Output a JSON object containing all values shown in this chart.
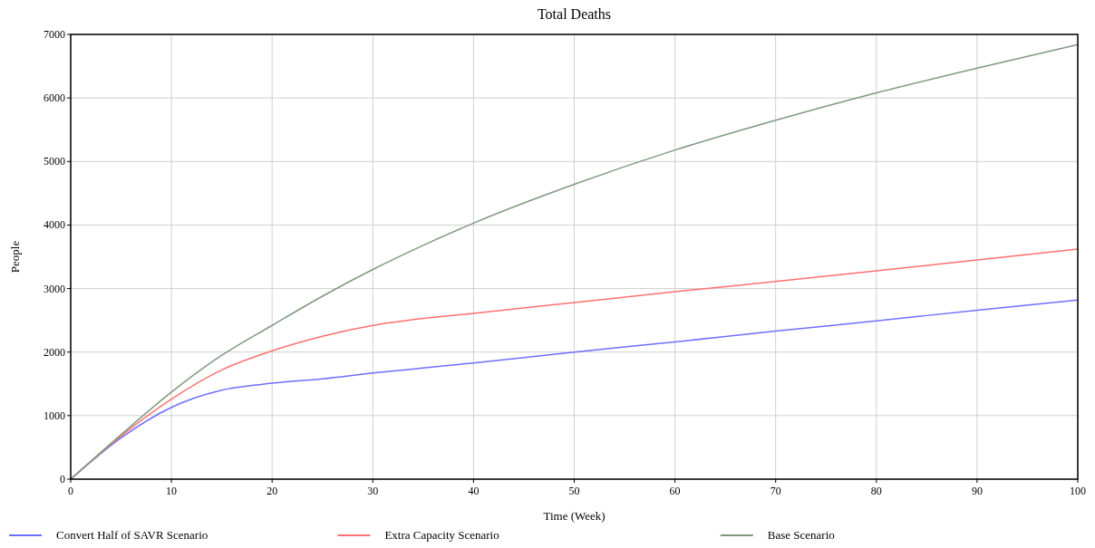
{
  "chart_data": {
    "type": "line",
    "title": "Total Deaths",
    "xlabel": "Time (Week)",
    "ylabel": "People",
    "x": [
      0,
      5,
      10,
      15,
      20,
      25,
      30,
      35,
      40,
      50,
      60,
      70,
      80,
      90,
      100
    ],
    "series": [
      {
        "name": "Convert Half of SAVR Scenario",
        "color": "#6f6fff",
        "values": [
          0,
          650,
          1130,
          1400,
          1510,
          1580,
          1670,
          1750,
          1830,
          2000,
          2160,
          2330,
          2490,
          2660,
          2820
        ]
      },
      {
        "name": "Extra Capacity Scenario",
        "color": "#ff7070",
        "values": [
          0,
          680,
          1260,
          1720,
          2020,
          2250,
          2420,
          2530,
          2610,
          2780,
          2950,
          3110,
          3280,
          3450,
          3620
        ]
      },
      {
        "name": "Base Scenario",
        "color": "#7f9a7f",
        "values": [
          0,
          700,
          1370,
          1950,
          2420,
          2880,
          3300,
          3680,
          4030,
          4640,
          5180,
          5650,
          6080,
          6470,
          6840
        ]
      }
    ],
    "xlim": [
      0,
      100
    ],
    "xticks": [
      0,
      10,
      20,
      30,
      40,
      50,
      60,
      70,
      80,
      90,
      100
    ],
    "ylim": [
      0,
      7000
    ],
    "yticks": [
      0,
      1000,
      2000,
      3000,
      4000,
      5000,
      6000,
      7000
    ],
    "grid": true,
    "legend": "bottom",
    "line_style": "solid",
    "marker": "none"
  }
}
